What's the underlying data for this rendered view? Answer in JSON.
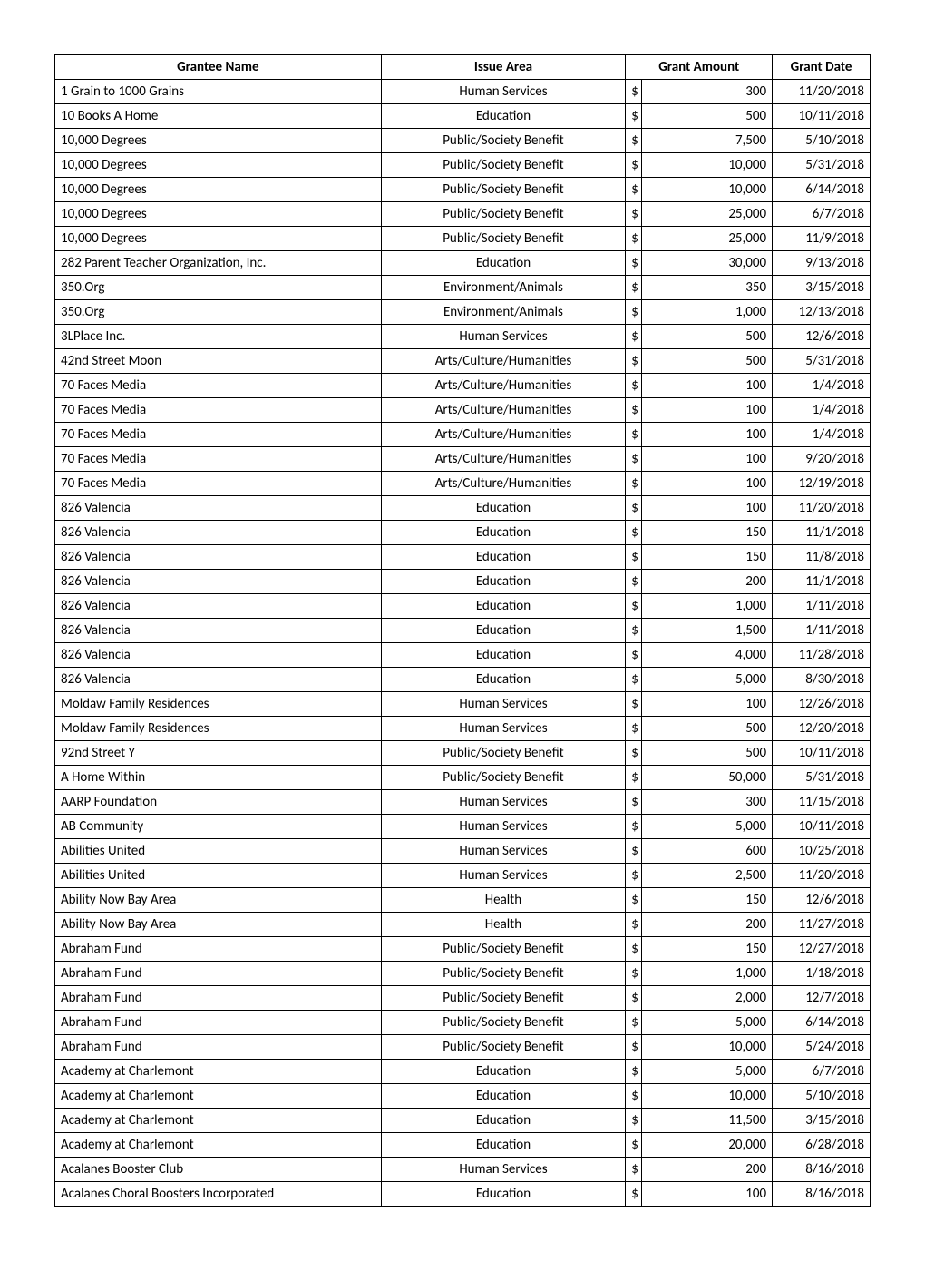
{
  "table": {
    "columns": [
      "Grantee Name",
      "Issue Area",
      "Grant Amount",
      "Grant Date"
    ],
    "column_widths_pct": [
      40,
      30,
      18,
      12
    ],
    "header_align": [
      "center",
      "center",
      "center",
      "center"
    ],
    "body_align": [
      "left",
      "center",
      "right",
      "right"
    ],
    "font_family": "Calibri",
    "font_size_pt": 11,
    "border_color": "#000000",
    "background_color": "#ffffff",
    "text_color": "#000000",
    "currency_symbol": "$",
    "rows": [
      {
        "grantee": "1 Grain to 1000 Grains",
        "issue": "Human Services",
        "amount": "300",
        "date": "11/20/2018"
      },
      {
        "grantee": "10 Books A Home",
        "issue": "Education",
        "amount": "500",
        "date": "10/11/2018"
      },
      {
        "grantee": "10,000 Degrees",
        "issue": "Public/Society Benefit",
        "amount": "7,500",
        "date": "5/10/2018"
      },
      {
        "grantee": "10,000 Degrees",
        "issue": "Public/Society Benefit",
        "amount": "10,000",
        "date": "5/31/2018"
      },
      {
        "grantee": "10,000 Degrees",
        "issue": "Public/Society Benefit",
        "amount": "10,000",
        "date": "6/14/2018"
      },
      {
        "grantee": "10,000 Degrees",
        "issue": "Public/Society Benefit",
        "amount": "25,000",
        "date": "6/7/2018"
      },
      {
        "grantee": "10,000 Degrees",
        "issue": "Public/Society Benefit",
        "amount": "25,000",
        "date": "11/9/2018"
      },
      {
        "grantee": "282 Parent Teacher Organization, Inc.",
        "issue": "Education",
        "amount": "30,000",
        "date": "9/13/2018"
      },
      {
        "grantee": "350.Org",
        "issue": "Environment/Animals",
        "amount": "350",
        "date": "3/15/2018"
      },
      {
        "grantee": "350.Org",
        "issue": "Environment/Animals",
        "amount": "1,000",
        "date": "12/13/2018"
      },
      {
        "grantee": "3LPlace Inc.",
        "issue": "Human Services",
        "amount": "500",
        "date": "12/6/2018"
      },
      {
        "grantee": "42nd Street Moon",
        "issue": "Arts/Culture/Humanities",
        "amount": "500",
        "date": "5/31/2018"
      },
      {
        "grantee": "70 Faces Media",
        "issue": "Arts/Culture/Humanities",
        "amount": "100",
        "date": "1/4/2018"
      },
      {
        "grantee": "70 Faces Media",
        "issue": "Arts/Culture/Humanities",
        "amount": "100",
        "date": "1/4/2018"
      },
      {
        "grantee": "70 Faces Media",
        "issue": "Arts/Culture/Humanities",
        "amount": "100",
        "date": "1/4/2018"
      },
      {
        "grantee": "70 Faces Media",
        "issue": "Arts/Culture/Humanities",
        "amount": "100",
        "date": "9/20/2018"
      },
      {
        "grantee": "70 Faces Media",
        "issue": "Arts/Culture/Humanities",
        "amount": "100",
        "date": "12/19/2018"
      },
      {
        "grantee": "826 Valencia",
        "issue": "Education",
        "amount": "100",
        "date": "11/20/2018"
      },
      {
        "grantee": "826 Valencia",
        "issue": "Education",
        "amount": "150",
        "date": "11/1/2018"
      },
      {
        "grantee": "826 Valencia",
        "issue": "Education",
        "amount": "150",
        "date": "11/8/2018"
      },
      {
        "grantee": "826 Valencia",
        "issue": "Education",
        "amount": "200",
        "date": "11/1/2018"
      },
      {
        "grantee": "826 Valencia",
        "issue": "Education",
        "amount": "1,000",
        "date": "1/11/2018"
      },
      {
        "grantee": "826 Valencia",
        "issue": "Education",
        "amount": "1,500",
        "date": "1/11/2018"
      },
      {
        "grantee": "826 Valencia",
        "issue": "Education",
        "amount": "4,000",
        "date": "11/28/2018"
      },
      {
        "grantee": "826 Valencia",
        "issue": "Education",
        "amount": "5,000",
        "date": "8/30/2018"
      },
      {
        "grantee": "Moldaw Family Residences",
        "issue": "Human Services",
        "amount": "100",
        "date": "12/26/2018"
      },
      {
        "grantee": "Moldaw Family Residences",
        "issue": "Human Services",
        "amount": "500",
        "date": "12/20/2018"
      },
      {
        "grantee": "92nd Street Y",
        "issue": "Public/Society Benefit",
        "amount": "500",
        "date": "10/11/2018"
      },
      {
        "grantee": "A Home Within",
        "issue": "Public/Society Benefit",
        "amount": "50,000",
        "date": "5/31/2018"
      },
      {
        "grantee": "AARP Foundation",
        "issue": "Human Services",
        "amount": "300",
        "date": "11/15/2018"
      },
      {
        "grantee": "AB Community",
        "issue": "Human Services",
        "amount": "5,000",
        "date": "10/11/2018"
      },
      {
        "grantee": "Abilities United",
        "issue": "Human Services",
        "amount": "600",
        "date": "10/25/2018"
      },
      {
        "grantee": "Abilities United",
        "issue": "Human Services",
        "amount": "2,500",
        "date": "11/20/2018"
      },
      {
        "grantee": "Ability Now Bay Area",
        "issue": "Health",
        "amount": "150",
        "date": "12/6/2018"
      },
      {
        "grantee": "Ability Now Bay Area",
        "issue": "Health",
        "amount": "200",
        "date": "11/27/2018"
      },
      {
        "grantee": "Abraham Fund",
        "issue": "Public/Society Benefit",
        "amount": "150",
        "date": "12/27/2018"
      },
      {
        "grantee": "Abraham Fund",
        "issue": "Public/Society Benefit",
        "amount": "1,000",
        "date": "1/18/2018"
      },
      {
        "grantee": "Abraham Fund",
        "issue": "Public/Society Benefit",
        "amount": "2,000",
        "date": "12/7/2018"
      },
      {
        "grantee": "Abraham Fund",
        "issue": "Public/Society Benefit",
        "amount": "5,000",
        "date": "6/14/2018"
      },
      {
        "grantee": "Abraham Fund",
        "issue": "Public/Society Benefit",
        "amount": "10,000",
        "date": "5/24/2018"
      },
      {
        "grantee": "Academy at Charlemont",
        "issue": "Education",
        "amount": "5,000",
        "date": "6/7/2018"
      },
      {
        "grantee": "Academy at Charlemont",
        "issue": "Education",
        "amount": "10,000",
        "date": "5/10/2018"
      },
      {
        "grantee": "Academy at Charlemont",
        "issue": "Education",
        "amount": "11,500",
        "date": "3/15/2018"
      },
      {
        "grantee": "Academy at Charlemont",
        "issue": "Education",
        "amount": "20,000",
        "date": "6/28/2018"
      },
      {
        "grantee": "Acalanes Booster Club",
        "issue": "Human Services",
        "amount": "200",
        "date": "8/16/2018"
      },
      {
        "grantee": "Acalanes Choral Boosters Incorporated",
        "issue": "Education",
        "amount": "100",
        "date": "8/16/2018"
      }
    ]
  }
}
